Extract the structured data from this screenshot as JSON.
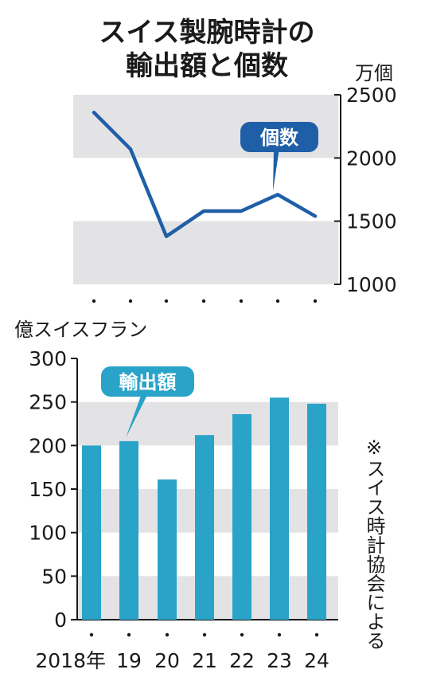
{
  "title_lines": [
    "スイス製腕時計の",
    "輸出額と個数"
  ],
  "source_note": "※スイス時計協会による",
  "colors": {
    "line": "#1f5fa8",
    "bar": "#2aa3c9",
    "band": "#e3e3e5",
    "text": "#1a1a1a"
  },
  "chart_data": [
    {
      "type": "line",
      "ylabel": "万個",
      "ylim": [
        1000,
        2500
      ],
      "yticks": [
        "2500",
        "2000",
        "1500",
        "1000"
      ],
      "x": [
        "2018",
        "19",
        "20",
        "21",
        "22",
        "23",
        "24"
      ],
      "series": [
        {
          "name": "個数",
          "values": [
            2360,
            2070,
            1380,
            1580,
            1580,
            1710,
            1540
          ]
        }
      ],
      "grid": "alternating-bands",
      "callout": "個数"
    },
    {
      "type": "bar",
      "ylabel": "億スイスフラン",
      "ylim": [
        0,
        300
      ],
      "yticks": [
        "300",
        "250",
        "200",
        "150",
        "100",
        "50",
        "0"
      ],
      "categories": [
        "2018年",
        "19",
        "20",
        "21",
        "22",
        "23",
        "24"
      ],
      "series": [
        {
          "name": "輸出額",
          "values": [
            200,
            205,
            161,
            212,
            236,
            255,
            248
          ]
        }
      ],
      "grid": "alternating-bands",
      "callout": "輸出額"
    }
  ]
}
